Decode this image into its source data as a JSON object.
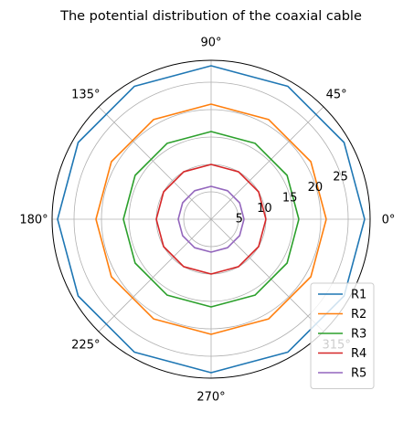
{
  "chart_data": {
    "type": "line",
    "projection": "polar",
    "title": "The potential distribution of the coaxial cable",
    "theta_deg": [
      0,
      30,
      60,
      90,
      120,
      150,
      180,
      210,
      240,
      270,
      300,
      330,
      360
    ],
    "series": [
      {
        "name": "R1",
        "color": "#1f77b4",
        "values": [
          28,
          28,
          28,
          28,
          28,
          28,
          28,
          28,
          28,
          28,
          28,
          28,
          28
        ]
      },
      {
        "name": "R2",
        "color": "#ff7f0e",
        "values": [
          21,
          21,
          21,
          21,
          21,
          21,
          21,
          21,
          21,
          21,
          21,
          21,
          21
        ]
      },
      {
        "name": "R3",
        "color": "#2ca02c",
        "values": [
          16,
          16,
          16,
          16,
          16,
          16,
          16,
          16,
          16,
          16,
          16,
          16,
          16
        ]
      },
      {
        "name": "R4",
        "color": "#d62728",
        "values": [
          10,
          10,
          10,
          10,
          10,
          10,
          10,
          10,
          10,
          10,
          10,
          10,
          10
        ]
      },
      {
        "name": "R5",
        "color": "#9467bd",
        "values": [
          6,
          6,
          6,
          6,
          6,
          6,
          6,
          6,
          6,
          6,
          6,
          6,
          6
        ]
      }
    ],
    "rlim": [
      0,
      29
    ],
    "r_ticks": [
      5,
      10,
      15,
      20,
      25
    ],
    "r_tick_labels": [
      "5",
      "10",
      "15",
      "20",
      "25"
    ],
    "theta_ticks": [
      0,
      45,
      90,
      135,
      180,
      225,
      270,
      315
    ],
    "theta_tick_labels": [
      "0°",
      "45°",
      "90°",
      "135°",
      "180°",
      "225°",
      "270°",
      "315°"
    ],
    "grid": true,
    "legend_position": "bottom-right"
  }
}
